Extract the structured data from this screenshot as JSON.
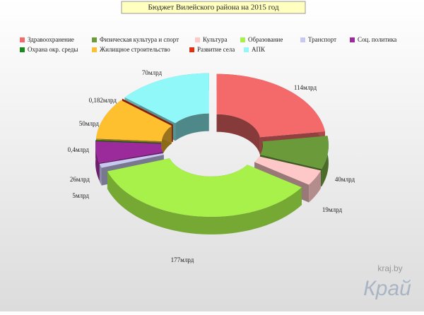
{
  "chart_data": {
    "type": "donut3d",
    "title": "Бюджет Вилейского района на 2015 год",
    "categories": [
      "Здравоохранение",
      "Физическая культура и спорт",
      "Культура",
      "Образование",
      "Транспорт",
      "Соц. политика",
      "Охрана окр. среды",
      "Жилищное строительство",
      "Развитие села",
      "АПК"
    ],
    "values": [
      114,
      40,
      19,
      177,
      5,
      26,
      0.4,
      50,
      0.182,
      70
    ],
    "value_labels": [
      "114млрд",
      "40млрд",
      "19млрд",
      "177млрд",
      "5млрд",
      "26млрд",
      "0,4млрд",
      "50млрд",
      "0,182млрд",
      "70млрд"
    ],
    "colors": [
      "#f46a6a",
      "#6a9a3a",
      "#ffc8c8",
      "#a8f04a",
      "#c8c8f0",
      "#9b2b9b",
      "#1a8a1a",
      "#ffc030",
      "#e03010",
      "#90f8f8"
    ],
    "watermark_site": "kraj.by",
    "watermark_logo": "Край"
  }
}
